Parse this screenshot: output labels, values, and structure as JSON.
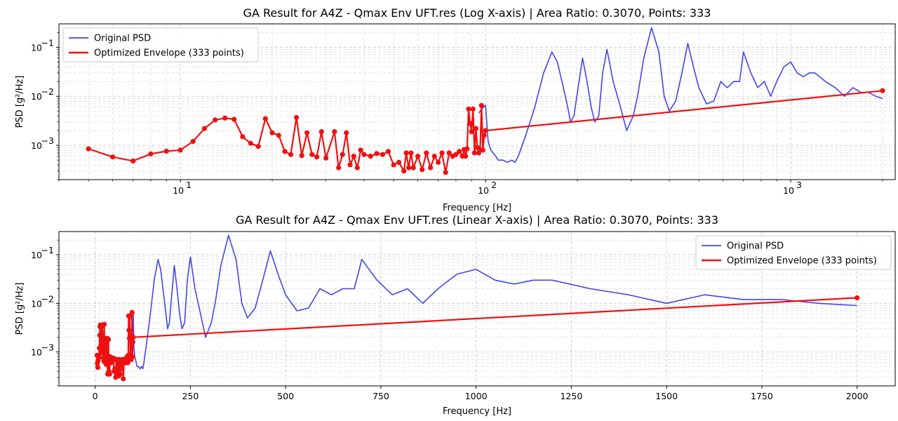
{
  "chart_data": [
    {
      "type": "line",
      "title": "GA Result for A4Z - Qmax Env UFT.res (Log X-axis) | Area Ratio: 0.3070, Points: 333",
      "xlabel": "Frequency [Hz]",
      "ylabel": "PSD [g²/Hz]",
      "xscale": "log",
      "yscale": "log",
      "xlim": [
        4,
        2200
      ],
      "ylim": [
        0.0002,
        0.3
      ],
      "x_tick_values": [
        10,
        100,
        1000
      ],
      "x_tick_labels": [
        "10",
        "10",
        "10"
      ],
      "x_tick_exponents": [
        "1",
        "2",
        "3"
      ],
      "y_tick_values": [
        0.001,
        0.01,
        0.1
      ],
      "y_tick_labels": [
        "10",
        "10",
        "10"
      ],
      "y_tick_exponents": [
        "−3",
        "−2",
        "−1"
      ],
      "grid": "both, minor and major, dashed",
      "legend_placement": "top-left",
      "series": [
        {
          "name": "Original PSD",
          "color": "#4444ee",
          "style": "line",
          "x": [
            95,
            97,
            100,
            102,
            104,
            106,
            108,
            110,
            114,
            118,
            122,
            125,
            128,
            135,
            145,
            155,
            165,
            172,
            178,
            185,
            190,
            195,
            200,
            208,
            215,
            222,
            228,
            235,
            242,
            250,
            262,
            275,
            290,
            305,
            315,
            330,
            350,
            370,
            385,
            400,
            420,
            440,
            460,
            480,
            500,
            530,
            560,
            590,
            620,
            650,
            680,
            700,
            740,
            780,
            820,
            860,
            900,
            950,
            1000,
            1050,
            1100,
            1150,
            1200,
            1300,
            1400,
            1500,
            1600,
            1700,
            1800,
            1900,
            2000
          ],
          "y": [
            0.0045,
            0.0055,
            0.0065,
            0.0012,
            0.0008,
            0.0007,
            0.0006,
            0.0005,
            0.0005,
            0.00045,
            0.0005,
            0.00045,
            0.0006,
            0.0015,
            0.006,
            0.03,
            0.08,
            0.05,
            0.02,
            0.007,
            0.003,
            0.004,
            0.012,
            0.06,
            0.02,
            0.006,
            0.003,
            0.004,
            0.03,
            0.09,
            0.02,
            0.007,
            0.002,
            0.004,
            0.01,
            0.06,
            0.25,
            0.08,
            0.01,
            0.005,
            0.008,
            0.03,
            0.12,
            0.04,
            0.015,
            0.007,
            0.008,
            0.02,
            0.015,
            0.02,
            0.02,
            0.08,
            0.03,
            0.015,
            0.02,
            0.01,
            0.02,
            0.04,
            0.05,
            0.03,
            0.025,
            0.03,
            0.03,
            0.02,
            0.015,
            0.01,
            0.015,
            0.012,
            0.012,
            0.01,
            0.009
          ]
        },
        {
          "name": "Optimized Envelope (333 points)",
          "color": "#ee1111",
          "style": "line+markers",
          "x": [
            5,
            6,
            7,
            8,
            9,
            10,
            11,
            12,
            13,
            14,
            15,
            16,
            17,
            18,
            19,
            20,
            21,
            22,
            23,
            24,
            25,
            26,
            27,
            28,
            29,
            30,
            32,
            33,
            34,
            35,
            36,
            37,
            38,
            39,
            40,
            42,
            44,
            46,
            48,
            50,
            52,
            54,
            55,
            56,
            57,
            58,
            60,
            62,
            64,
            66,
            68,
            70,
            72,
            74,
            76,
            78,
            80,
            82,
            84,
            85,
            86,
            87,
            88,
            89,
            90,
            91,
            92,
            93,
            94,
            95,
            96,
            97,
            98,
            99,
            100,
            2000
          ],
          "y": [
            0.00085,
            0.00058,
            0.00048,
            0.00067,
            0.00076,
            0.0008,
            0.0012,
            0.0022,
            0.0033,
            0.0036,
            0.0034,
            0.0015,
            0.0011,
            0.00095,
            0.0035,
            0.0018,
            0.0016,
            0.00075,
            0.00065,
            0.0037,
            0.00062,
            0.0018,
            0.00065,
            0.00058,
            0.0019,
            0.00055,
            0.0019,
            0.00035,
            0.00065,
            0.0018,
            0.0004,
            0.0006,
            0.00035,
            0.0008,
            0.00065,
            0.0006,
            0.00068,
            0.00065,
            0.00075,
            0.0004,
            0.00045,
            0.0003,
            0.0007,
            0.00035,
            0.0007,
            0.00035,
            0.0006,
            0.00032,
            0.0007,
            0.00035,
            0.0006,
            0.00045,
            0.0007,
            0.00028,
            0.0007,
            0.0006,
            0.00065,
            0.00075,
            0.0006,
            0.00082,
            0.0006,
            0.00085,
            0.0055,
            0.0028,
            0.0019,
            0.0055,
            0.0007,
            0.0022,
            0.0009,
            0.0007,
            0.0008,
            0.0065,
            0.0008,
            0.0016,
            0.002,
            0.013
          ]
        }
      ]
    },
    {
      "type": "line",
      "title": "GA Result for A4Z - Qmax Env UFT.res (Linear X-axis) | Area Ratio: 0.3070, Points: 333",
      "xlabel": "Frequency [Hz]",
      "ylabel": "PSD [g²/Hz]",
      "xscale": "linear",
      "yscale": "log",
      "xlim": [
        -95,
        2100
      ],
      "ylim": [
        0.0002,
        0.3
      ],
      "x_tick_values": [
        0,
        250,
        500,
        750,
        1000,
        1250,
        1500,
        1750,
        2000
      ],
      "x_tick_labels": [
        "0",
        "250",
        "500",
        "750",
        "1000",
        "1250",
        "1500",
        "1750",
        "2000"
      ],
      "y_tick_values": [
        0.001,
        0.01,
        0.1
      ],
      "y_tick_labels": [
        "10",
        "10",
        "10"
      ],
      "y_tick_exponents": [
        "−3",
        "−2",
        "−1"
      ],
      "grid": "both, minor and major, dashed",
      "legend_placement": "top-right",
      "series": [
        {
          "name": "Original PSD",
          "color": "#4444ee",
          "style": "line",
          "x": [
            95,
            97,
            100,
            102,
            104,
            106,
            108,
            110,
            114,
            118,
            122,
            125,
            128,
            135,
            145,
            155,
            165,
            172,
            178,
            185,
            190,
            195,
            200,
            208,
            215,
            222,
            228,
            235,
            242,
            250,
            262,
            275,
            290,
            305,
            315,
            330,
            350,
            370,
            385,
            400,
            420,
            440,
            460,
            480,
            500,
            530,
            560,
            590,
            620,
            650,
            680,
            700,
            740,
            780,
            820,
            860,
            900,
            950,
            1000,
            1050,
            1100,
            1150,
            1200,
            1300,
            1400,
            1500,
            1600,
            1700,
            1800,
            1900,
            2000
          ],
          "y": [
            0.0045,
            0.0055,
            0.0065,
            0.0012,
            0.0008,
            0.0007,
            0.0006,
            0.0005,
            0.0005,
            0.00045,
            0.0005,
            0.00045,
            0.0006,
            0.0015,
            0.006,
            0.03,
            0.08,
            0.05,
            0.02,
            0.007,
            0.003,
            0.004,
            0.012,
            0.06,
            0.02,
            0.006,
            0.003,
            0.004,
            0.03,
            0.09,
            0.02,
            0.007,
            0.002,
            0.004,
            0.01,
            0.06,
            0.25,
            0.08,
            0.01,
            0.005,
            0.008,
            0.03,
            0.12,
            0.04,
            0.015,
            0.007,
            0.008,
            0.02,
            0.015,
            0.02,
            0.02,
            0.08,
            0.03,
            0.015,
            0.02,
            0.01,
            0.02,
            0.04,
            0.05,
            0.03,
            0.025,
            0.03,
            0.03,
            0.02,
            0.015,
            0.01,
            0.015,
            0.012,
            0.012,
            0.01,
            0.009
          ]
        },
        {
          "name": "Optimized Envelope (333 points)",
          "color": "#ee1111",
          "style": "line+markers",
          "x": [
            5,
            6,
            7,
            8,
            9,
            10,
            11,
            12,
            13,
            14,
            15,
            16,
            17,
            18,
            19,
            20,
            21,
            22,
            23,
            24,
            25,
            26,
            27,
            28,
            29,
            30,
            32,
            33,
            34,
            35,
            36,
            37,
            38,
            39,
            40,
            42,
            44,
            46,
            48,
            50,
            52,
            54,
            55,
            56,
            57,
            58,
            60,
            62,
            64,
            66,
            68,
            70,
            72,
            74,
            76,
            78,
            80,
            82,
            84,
            85,
            86,
            87,
            88,
            89,
            90,
            91,
            92,
            93,
            94,
            95,
            96,
            97,
            98,
            99,
            100,
            2000
          ],
          "y": [
            0.00085,
            0.00058,
            0.00048,
            0.00067,
            0.00076,
            0.0008,
            0.0012,
            0.0022,
            0.0033,
            0.0036,
            0.0034,
            0.0015,
            0.0011,
            0.00095,
            0.0035,
            0.0018,
            0.0016,
            0.00075,
            0.00065,
            0.0037,
            0.00062,
            0.0018,
            0.00065,
            0.00058,
            0.0019,
            0.00055,
            0.0019,
            0.00035,
            0.00065,
            0.0018,
            0.0004,
            0.0006,
            0.00035,
            0.0008,
            0.00065,
            0.0006,
            0.00068,
            0.00065,
            0.00075,
            0.0004,
            0.00045,
            0.0003,
            0.0007,
            0.00035,
            0.0007,
            0.00035,
            0.0006,
            0.00032,
            0.0007,
            0.00035,
            0.0006,
            0.00045,
            0.0007,
            0.00028,
            0.0007,
            0.0006,
            0.00065,
            0.00075,
            0.0006,
            0.00082,
            0.0006,
            0.00085,
            0.0055,
            0.0028,
            0.0019,
            0.0055,
            0.0007,
            0.0022,
            0.0009,
            0.0007,
            0.0008,
            0.0065,
            0.0008,
            0.0016,
            0.002,
            0.013
          ]
        }
      ]
    }
  ]
}
